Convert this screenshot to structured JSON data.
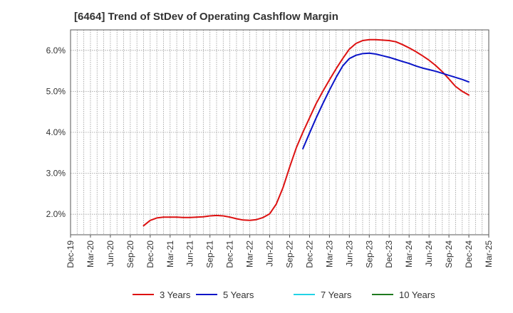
{
  "chart_data": {
    "type": "line",
    "title": "[6464]  Trend of StDev of Operating Cashflow Margin",
    "xlabel": "",
    "ylabel": "",
    "ylim": [
      1.5,
      6.5
    ],
    "y_ticks": [
      "2.0%",
      "3.0%",
      "4.0%",
      "5.0%",
      "6.0%"
    ],
    "y_tick_values": [
      2.0,
      3.0,
      4.0,
      5.0,
      6.0
    ],
    "x_tick_labels": [
      "Dec-19",
      "Mar-20",
      "Jun-20",
      "Sep-20",
      "Dec-20",
      "Mar-21",
      "Jun-21",
      "Sep-21",
      "Dec-21",
      "Mar-22",
      "Jun-22",
      "Sep-22",
      "Dec-22",
      "Mar-23",
      "Jun-23",
      "Sep-23",
      "Dec-23",
      "Mar-24",
      "Jun-24",
      "Sep-24",
      "Dec-24",
      "Mar-25"
    ],
    "grid": true,
    "legend_position": "bottom",
    "series": [
      {
        "name": "3 Years",
        "color": "#dd1111",
        "points": [
          [
            "Nov-20",
            1.72
          ],
          [
            "Dec-20",
            1.85
          ],
          [
            "Jan-21",
            1.91
          ],
          [
            "Feb-21",
            1.93
          ],
          [
            "Mar-21",
            1.93
          ],
          [
            "Apr-21",
            1.93
          ],
          [
            "May-21",
            1.92
          ],
          [
            "Jun-21",
            1.92
          ],
          [
            "Jul-21",
            1.93
          ],
          [
            "Aug-21",
            1.94
          ],
          [
            "Sep-21",
            1.96
          ],
          [
            "Oct-21",
            1.97
          ],
          [
            "Nov-21",
            1.96
          ],
          [
            "Dec-21",
            1.93
          ],
          [
            "Jan-22",
            1.89
          ],
          [
            "Feb-22",
            1.86
          ],
          [
            "Mar-22",
            1.85
          ],
          [
            "Apr-22",
            1.87
          ],
          [
            "May-22",
            1.92
          ],
          [
            "Jun-22",
            2.01
          ],
          [
            "Jul-22",
            2.25
          ],
          [
            "Aug-22",
            2.65
          ],
          [
            "Sep-22",
            3.15
          ],
          [
            "Oct-22",
            3.62
          ],
          [
            "Nov-22",
            4.0
          ],
          [
            "Dec-22",
            4.35
          ],
          [
            "Jan-23",
            4.7
          ],
          [
            "Feb-23",
            5.0
          ],
          [
            "Mar-23",
            5.28
          ],
          [
            "Apr-23",
            5.55
          ],
          [
            "May-23",
            5.8
          ],
          [
            "Jun-23",
            6.03
          ],
          [
            "Jul-23",
            6.17
          ],
          [
            "Aug-23",
            6.24
          ],
          [
            "Sep-23",
            6.26
          ],
          [
            "Oct-23",
            6.26
          ],
          [
            "Nov-23",
            6.25
          ],
          [
            "Dec-23",
            6.24
          ],
          [
            "Jan-24",
            6.21
          ],
          [
            "Feb-24",
            6.14
          ],
          [
            "Mar-24",
            6.06
          ],
          [
            "Apr-24",
            5.97
          ],
          [
            "May-24",
            5.87
          ],
          [
            "Jun-24",
            5.76
          ],
          [
            "Jul-24",
            5.63
          ],
          [
            "Aug-24",
            5.48
          ],
          [
            "Sep-24",
            5.3
          ],
          [
            "Oct-24",
            5.12
          ],
          [
            "Nov-24",
            5.0
          ],
          [
            "Dec-24",
            4.91
          ]
        ]
      },
      {
        "name": "5 Years",
        "color": "#0a14c8",
        "points": [
          [
            "Nov-22",
            3.6
          ],
          [
            "Dec-22",
            3.98
          ],
          [
            "Jan-23",
            4.35
          ],
          [
            "Feb-23",
            4.7
          ],
          [
            "Mar-23",
            5.03
          ],
          [
            "Apr-23",
            5.34
          ],
          [
            "May-23",
            5.62
          ],
          [
            "Jun-23",
            5.8
          ],
          [
            "Jul-23",
            5.88
          ],
          [
            "Aug-23",
            5.92
          ],
          [
            "Sep-23",
            5.93
          ],
          [
            "Oct-23",
            5.91
          ],
          [
            "Nov-23",
            5.87
          ],
          [
            "Dec-23",
            5.83
          ],
          [
            "Jan-24",
            5.78
          ],
          [
            "Feb-24",
            5.73
          ],
          [
            "Mar-24",
            5.68
          ],
          [
            "Apr-24",
            5.62
          ],
          [
            "May-24",
            5.57
          ],
          [
            "Jun-24",
            5.53
          ],
          [
            "Jul-24",
            5.49
          ],
          [
            "Aug-24",
            5.44
          ],
          [
            "Sep-24",
            5.39
          ],
          [
            "Oct-24",
            5.34
          ],
          [
            "Nov-24",
            5.29
          ],
          [
            "Dec-24",
            5.23
          ]
        ]
      },
      {
        "name": "7 Years",
        "color": "#22d3e6",
        "points": []
      },
      {
        "name": "10 Years",
        "color": "#1f7a1f",
        "points": []
      }
    ]
  }
}
